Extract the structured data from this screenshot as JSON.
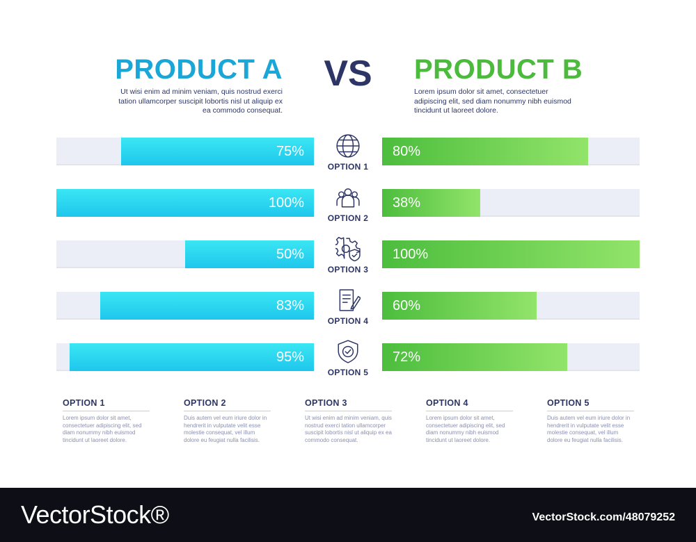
{
  "header": {
    "product_a": "PRODUCT A",
    "vs": "VS",
    "product_b": "PRODUCT B",
    "desc_a": "Ut wisi enim ad minim veniam, quis nostrud exerci tation ullamcorper suscipit lobortis nisl ut aliquip ex ea commodo consequat.",
    "desc_b": "Lorem ipsum dolor sit amet, consectetuer adipiscing elit, sed diam nonummy nibh euismod tincidunt ut laoreet dolore."
  },
  "colors": {
    "product_a": "#1aa6d6",
    "product_b": "#4cba3c",
    "text": "#2c3566",
    "track": "#eceef7"
  },
  "chart_data": {
    "type": "bar",
    "categories": [
      "OPTION 1",
      "OPTION 2",
      "OPTION 3",
      "OPTION 4",
      "OPTION 5"
    ],
    "icons": [
      "globe-icon",
      "team-icon",
      "gear-shield-icon",
      "document-edit-icon",
      "shield-check-icon"
    ],
    "series": [
      {
        "name": "PRODUCT A",
        "values": [
          75,
          100,
          50,
          83,
          95
        ],
        "labels": [
          "75%",
          "100%",
          "50%",
          "83%",
          "95%"
        ]
      },
      {
        "name": "PRODUCT B",
        "values": [
          80,
          38,
          100,
          60,
          72
        ],
        "labels": [
          "80%",
          "38%",
          "100%",
          "60%",
          "72%"
        ]
      }
    ],
    "ylim": [
      0,
      100
    ]
  },
  "notes": [
    {
      "title": "OPTION 1",
      "text": "Lorem ipsum dolor sit amet, consectetuer adipiscing elit, sed diam nonummy nibh euismod tincidunt ut laoreet dolore."
    },
    {
      "title": "OPTION 2",
      "text": "Duis autem vel eum iriure dolor in hendrerit in vulputate velit esse molestie consequat, vel illum dolore eu feugiat nulla facilisis."
    },
    {
      "title": "OPTION 3",
      "text": "Ut wisi enim ad minim veniam, quis nostrud exerci tation ullamcorper suscipit lobortis nisl ut aliquip ex ea commodo consequat."
    },
    {
      "title": "OPTION 4",
      "text": "Lorem ipsum dolor sit amet, consectetuer adipiscing elit, sed diam nonummy nibh euismod tincidunt ut laoreet dolore."
    },
    {
      "title": "OPTION 5",
      "text": "Duis autem vel eum iriure dolor in hendrerit in vulputate velit esse molestie consequat, vel illum dolore eu feugiat nulla facilisis."
    }
  ],
  "watermark": {
    "logo": "VectorStock®",
    "id": "VectorStock.com/48079252"
  }
}
